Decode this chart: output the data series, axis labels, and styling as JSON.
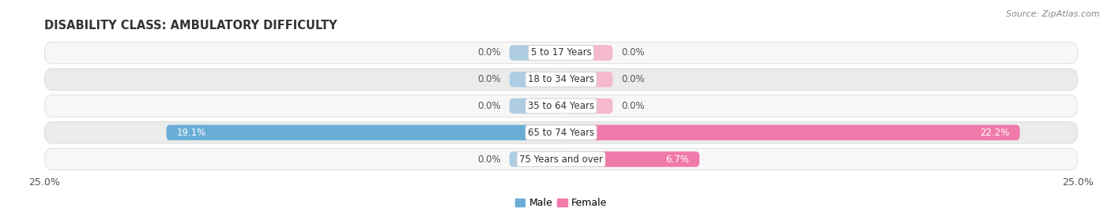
{
  "title": "DISABILITY CLASS: AMBULATORY DIFFICULTY",
  "source": "Source: ZipAtlas.com",
  "categories": [
    "5 to 17 Years",
    "18 to 34 Years",
    "35 to 64 Years",
    "65 to 74 Years",
    "75 Years and over"
  ],
  "male_values": [
    0.0,
    0.0,
    0.0,
    19.1,
    0.0
  ],
  "female_values": [
    0.0,
    0.0,
    0.0,
    22.2,
    6.7
  ],
  "max_val": 25.0,
  "male_color": "#6aaed6",
  "female_color": "#f07aaa",
  "male_stub_color": "#aecde3",
  "female_stub_color": "#f5b8cf",
  "row_bg_odd": "#ebebeb",
  "row_bg_even": "#f7f7f7",
  "title_fontsize": 10.5,
  "source_fontsize": 8,
  "label_fontsize": 8.5,
  "category_fontsize": 8.5,
  "axis_label_fontsize": 9,
  "legend_fontsize": 9,
  "stub_size": 2.5,
  "bar_height": 0.58
}
